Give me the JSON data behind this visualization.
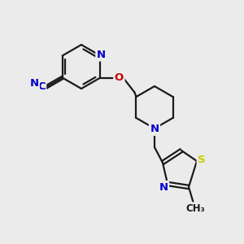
{
  "background_color": "#ebebeb",
  "bond_color": "#1a1a1a",
  "atom_colors": {
    "N": "#0000cc",
    "O": "#cc0000",
    "S": "#cccc00",
    "C": "#1a1a1a"
  },
  "figsize": [
    3.0,
    3.0
  ],
  "dpi": 100,
  "lw": 1.6,
  "fontsize": 9.5
}
